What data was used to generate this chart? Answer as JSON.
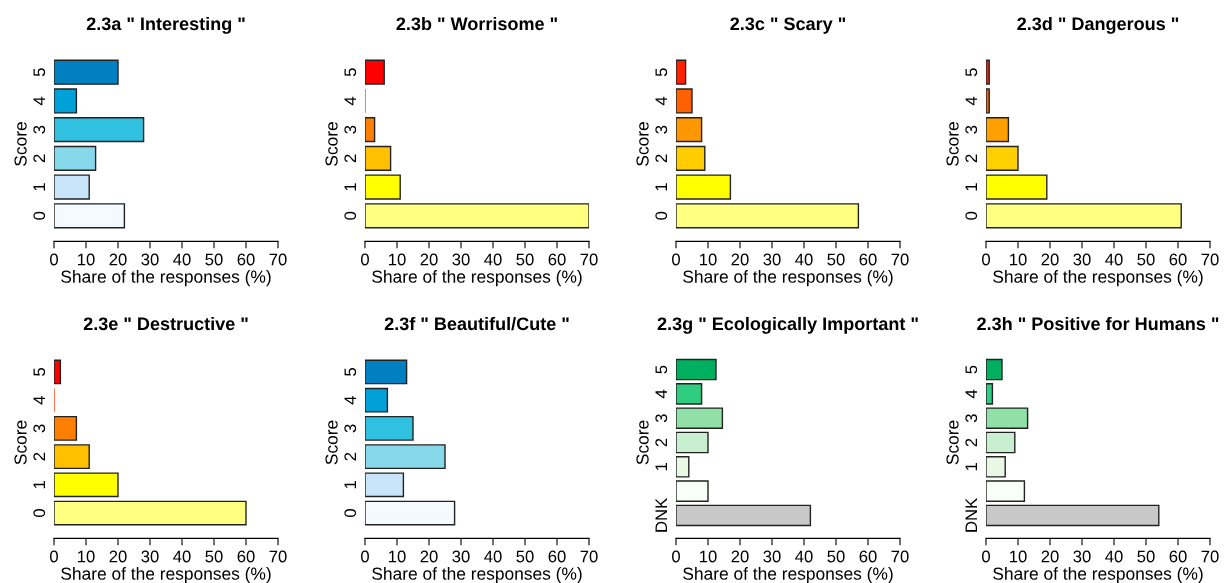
{
  "chart_data": [
    {
      "type": "bar",
      "orientation": "horizontal",
      "title": "2.3a \" Interesting \"",
      "xlabel": "Share of the responses (%)",
      "ylabel": "Score",
      "categories": [
        "5",
        "4",
        "3",
        "2",
        "1",
        "0"
      ],
      "values": [
        20,
        7,
        28,
        13,
        11,
        22
      ],
      "colors": [
        "#0080c0",
        "#00a0d8",
        "#30c0e0",
        "#88d8ec",
        "#c8e4f8",
        "#f4faff"
      ],
      "xlim": [
        0,
        70
      ],
      "xticks": [
        0,
        10,
        20,
        30,
        40,
        50,
        60,
        70
      ],
      "grid": false
    },
    {
      "type": "bar",
      "orientation": "horizontal",
      "title": "2.3b \" Worrisome \"",
      "xlabel": "Share of the responses (%)",
      "ylabel": "Score",
      "categories": [
        "5",
        "4",
        "3",
        "2",
        "1",
        "0"
      ],
      "values": [
        6,
        0,
        3,
        8,
        11,
        70
      ],
      "colors": [
        "#ff0000",
        "#ff4000",
        "#ff8000",
        "#ffc000",
        "#ffff00",
        "#ffff80"
      ],
      "xlim": [
        0,
        70
      ],
      "xticks": [
        0,
        10,
        20,
        30,
        40,
        50,
        60,
        70
      ],
      "grid": false
    },
    {
      "type": "bar",
      "orientation": "horizontal",
      "title": "2.3c \" Scary \"",
      "xlabel": "Share of the responses (%)",
      "ylabel": "Score",
      "categories": [
        "5",
        "4",
        "3",
        "2",
        "1",
        "0"
      ],
      "values": [
        3,
        5,
        8,
        9,
        17,
        57
      ],
      "colors": [
        "#ff2000",
        "#ff6000",
        "#ff9800",
        "#ffcc00",
        "#ffff00",
        "#ffff80"
      ],
      "xlim": [
        0,
        70
      ],
      "xticks": [
        0,
        10,
        20,
        30,
        40,
        50,
        60,
        70
      ],
      "grid": false
    },
    {
      "type": "bar",
      "orientation": "horizontal",
      "title": "2.3d \" Dangerous \"",
      "xlabel": "Share of the responses (%)",
      "ylabel": "Score",
      "categories": [
        "5",
        "4",
        "3",
        "2",
        "1",
        "0"
      ],
      "values": [
        1,
        1,
        7,
        10,
        19,
        61
      ],
      "colors": [
        "#ff2000",
        "#ff6000",
        "#ffa000",
        "#ffd000",
        "#ffff00",
        "#ffff80"
      ],
      "xlim": [
        0,
        70
      ],
      "xticks": [
        0,
        10,
        20,
        30,
        40,
        50,
        60,
        70
      ],
      "grid": false
    },
    {
      "type": "bar",
      "orientation": "horizontal",
      "title": "2.3e \" Destructive \"",
      "xlabel": "Share of the responses (%)",
      "ylabel": "Score",
      "categories": [
        "5",
        "4",
        "3",
        "2",
        "1",
        "0"
      ],
      "values": [
        2,
        0,
        7,
        11,
        20,
        60
      ],
      "colors": [
        "#ff0000",
        "#ff4000",
        "#ff8000",
        "#ffc000",
        "#ffff00",
        "#ffff80"
      ],
      "xlim": [
        0,
        70
      ],
      "xticks": [
        0,
        10,
        20,
        30,
        40,
        50,
        60,
        70
      ],
      "grid": false
    },
    {
      "type": "bar",
      "orientation": "horizontal",
      "title": "2.3f \" Beautiful/Cute \"",
      "xlabel": "Share of the responses (%)",
      "ylabel": "Score",
      "categories": [
        "5",
        "4",
        "3",
        "2",
        "1",
        "0"
      ],
      "values": [
        13,
        7,
        15,
        25,
        12,
        28
      ],
      "colors": [
        "#0080c0",
        "#00a0d8",
        "#30c0e0",
        "#88d8ec",
        "#c8e4f8",
        "#f4faff"
      ],
      "xlim": [
        0,
        70
      ],
      "xticks": [
        0,
        10,
        20,
        30,
        40,
        50,
        60,
        70
      ],
      "grid": false
    },
    {
      "type": "bar",
      "orientation": "horizontal",
      "title": "2.3g \" Ecologically Important \"",
      "xlabel": "Share of the responses (%)",
      "ylabel": "Score",
      "categories": [
        "5",
        "4",
        "3",
        "2",
        "1",
        null,
        "DNK"
      ],
      "values": [
        12.5,
        8,
        14.5,
        10,
        4,
        10,
        42
      ],
      "colors": [
        "#00b060",
        "#30cc80",
        "#90e0a8",
        "#c8f0d0",
        "#e8f8e4",
        "#f8fff8",
        "#c8c8c8"
      ],
      "xlim": [
        0,
        70
      ],
      "xticks": [
        0,
        10,
        20,
        30,
        40,
        50,
        60,
        70
      ],
      "grid": false
    },
    {
      "type": "bar",
      "orientation": "horizontal",
      "title": "2.3h \" Positive for Humans \"",
      "xlabel": "Share of the responses (%)",
      "ylabel": "Score",
      "categories": [
        "5",
        "4",
        "3",
        "2",
        "1",
        null,
        "DNK"
      ],
      "values": [
        5,
        2,
        13,
        9,
        6,
        12,
        54
      ],
      "colors": [
        "#00b060",
        "#30cc80",
        "#90e0a8",
        "#c8f0d0",
        "#e8f8e4",
        "#f8fff8",
        "#c8c8c8"
      ],
      "xlim": [
        0,
        70
      ],
      "xticks": [
        0,
        10,
        20,
        30,
        40,
        50,
        60,
        70
      ],
      "grid": false
    }
  ]
}
